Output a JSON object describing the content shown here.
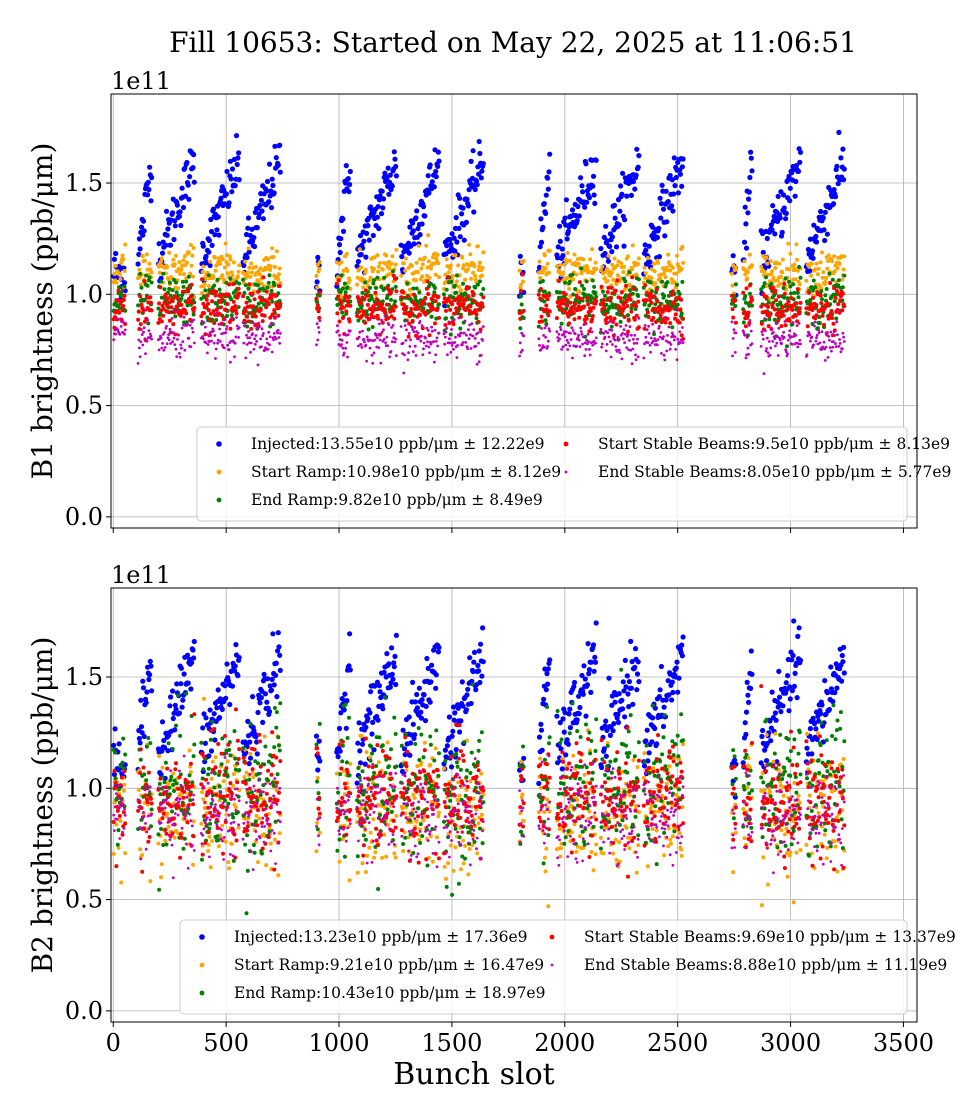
{
  "figure": {
    "title": "Fill 10653: Started on May 22, 2025 at 11:06:51"
  },
  "colors": {
    "Injected": "#0000ff",
    "Start Ramp": "#ffa500",
    "End Ramp": "#008000",
    "Start Stable Beams": "#ff0000",
    "End Stable Beams": "#bf00bf"
  },
  "chart_data": [
    {
      "type": "scatter",
      "id": "b1",
      "ylabel": "B1 brightness (ppb/μm)",
      "xlabel": "",
      "multiplier": "1e11",
      "xlim": [
        -10,
        3560
      ],
      "ylim": [
        -0.05,
        1.9
      ],
      "xticks": [
        0,
        500,
        1000,
        1500,
        2000,
        2500,
        3000,
        3500
      ],
      "yticks": [
        0.0,
        0.5,
        1.0,
        1.5
      ],
      "ytick_labels": [
        "0.0",
        "0.5",
        "1.0",
        "1.5"
      ],
      "grid": true,
      "legend_position": "lower-right",
      "trains": [
        [
          2,
          55,
          "single"
        ],
        [
          110,
          170,
          "ramp"
        ],
        [
          200,
          360,
          "ramp"
        ],
        [
          390,
          560,
          "ramp"
        ],
        [
          575,
          740,
          "ramp"
        ],
        [
          900,
          915,
          "single"
        ],
        [
          990,
          1050,
          "ramp"
        ],
        [
          1080,
          1255,
          "ramp"
        ],
        [
          1275,
          1445,
          "ramp"
        ],
        [
          1465,
          1640,
          "ramp"
        ],
        [
          1800,
          1820,
          "single"
        ],
        [
          1885,
          1935,
          "ramp"
        ],
        [
          1965,
          2140,
          "ramp"
        ],
        [
          2160,
          2330,
          "ramp"
        ],
        [
          2350,
          2525,
          "ramp"
        ],
        [
          2740,
          2760,
          "single"
        ],
        [
          2790,
          2830,
          "ramp"
        ],
        [
          2870,
          3045,
          "ramp"
        ],
        [
          3070,
          3240,
          "ramp"
        ]
      ],
      "series": [
        {
          "name": "Injected",
          "label": "Injected:13.55e10 ppb/μm ± 12.22e9",
          "mean": 1.355,
          "std": 0.1222,
          "model": {
            "lo": 1.15,
            "hi": 1.6,
            "spread": 0.06
          }
        },
        {
          "name": "Start Ramp",
          "label": "Start Ramp:10.98e10 ppb/μm ± 8.12e9",
          "mean": 1.098,
          "std": 0.0812,
          "model": {
            "mean": 1.1,
            "slope": 0.04,
            "spread": 0.05
          }
        },
        {
          "name": "End Ramp",
          "label": "End Ramp:9.82e10 ppb/μm ± 8.49e9",
          "mean": 0.982,
          "std": 0.0849,
          "model": {
            "mean": 0.97,
            "slope": 0.02,
            "spread": 0.055
          }
        },
        {
          "name": "Start Stable Beams",
          "label": "Start Stable Beams:9.5e10 ppb/μm ± 8.13e9",
          "mean": 0.95,
          "std": 0.0813,
          "model": {
            "mean": 0.94,
            "slope": 0.02,
            "spread": 0.05
          }
        },
        {
          "name": "End Stable Beams",
          "label": "End Stable Beams:8.05e10 ppb/μm ± 5.77e9",
          "mean": 0.805,
          "std": 0.0577,
          "model": {
            "mean": 0.8,
            "slope": 0.01,
            "spread": 0.045
          }
        }
      ]
    },
    {
      "type": "scatter",
      "id": "b2",
      "ylabel": "B2 brightness (ppb/μm)",
      "xlabel": "Bunch slot",
      "multiplier": "1e11",
      "xlim": [
        -10,
        3560
      ],
      "ylim": [
        -0.05,
        1.9
      ],
      "xticks": [
        0,
        500,
        1000,
        1500,
        2000,
        2500,
        3000,
        3500
      ],
      "yticks": [
        0.0,
        0.5,
        1.0,
        1.5
      ],
      "ytick_labels": [
        "0.0",
        "0.5",
        "1.0",
        "1.5"
      ],
      "grid": true,
      "legend_position": "lower-right",
      "trains": [
        [
          2,
          55,
          "single"
        ],
        [
          110,
          170,
          "ramp"
        ],
        [
          200,
          360,
          "ramp"
        ],
        [
          390,
          560,
          "ramp"
        ],
        [
          575,
          740,
          "ramp"
        ],
        [
          900,
          915,
          "single"
        ],
        [
          990,
          1050,
          "ramp"
        ],
        [
          1080,
          1255,
          "ramp"
        ],
        [
          1275,
          1445,
          "ramp"
        ],
        [
          1465,
          1640,
          "ramp"
        ],
        [
          1800,
          1820,
          "single"
        ],
        [
          1885,
          1935,
          "ramp"
        ],
        [
          1965,
          2140,
          "ramp"
        ],
        [
          2160,
          2330,
          "ramp"
        ],
        [
          2350,
          2525,
          "ramp"
        ],
        [
          2740,
          2760,
          "single"
        ],
        [
          2790,
          2830,
          "ramp"
        ],
        [
          2870,
          3045,
          "ramp"
        ],
        [
          3070,
          3240,
          "ramp"
        ]
      ],
      "series": [
        {
          "name": "Injected",
          "label": "Injected:13.23e10 ppb/μm ± 17.36e9",
          "mean": 1.323,
          "std": 0.1736,
          "model": {
            "lo": 1.15,
            "hi": 1.6,
            "spread": 0.07
          }
        },
        {
          "name": "Start Ramp",
          "label": "Start Ramp:9.21e10 ppb/μm ± 16.47e9",
          "mean": 0.921,
          "std": 0.1647,
          "model": {
            "mean": 0.9,
            "slope": 0.0,
            "spread": 0.14
          }
        },
        {
          "name": "End Ramp",
          "label": "End Ramp:10.43e10 ppb/μm ± 18.97e9",
          "mean": 1.043,
          "std": 0.1897,
          "model": {
            "mean": 1.0,
            "slope": 0.15,
            "spread": 0.16
          }
        },
        {
          "name": "Start Stable Beams",
          "label": "Start Stable Beams:9.69e10 ppb/μm ± 13.37e9",
          "mean": 0.969,
          "std": 0.1337,
          "model": {
            "mean": 0.96,
            "slope": 0.03,
            "spread": 0.12
          }
        },
        {
          "name": "End Stable Beams",
          "label": "End Stable Beams:8.88e10 ppb/μm ± 11.19e9",
          "mean": 0.888,
          "std": 0.1119,
          "model": {
            "mean": 0.88,
            "slope": 0.02,
            "spread": 0.1
          }
        }
      ]
    }
  ]
}
